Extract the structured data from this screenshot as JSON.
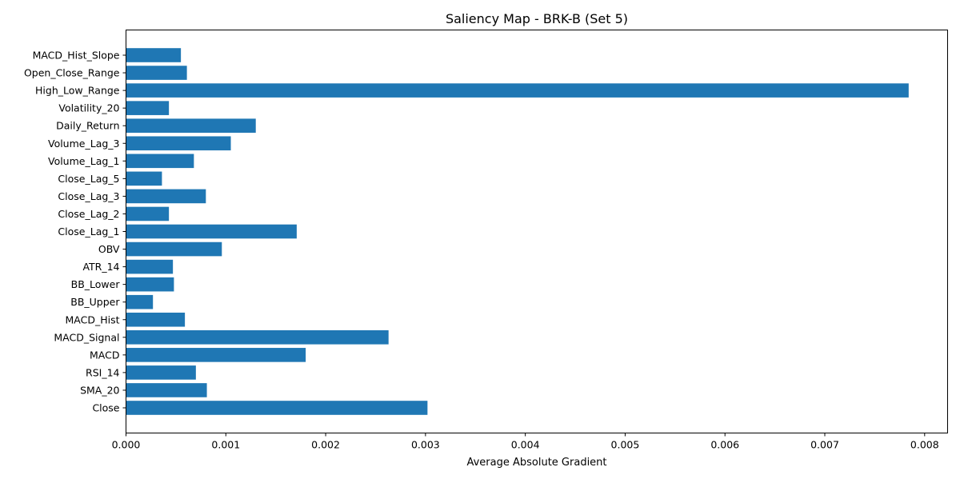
{
  "chart_data": {
    "type": "bar",
    "orientation": "horizontal",
    "title": "Saliency Map - BRK-B (Set 5)",
    "xlabel": "Average Absolute Gradient",
    "ylabel": "",
    "xlim": [
      0,
      0.00823
    ],
    "xticks": [
      0.0,
      0.001,
      0.002,
      0.003,
      0.004,
      0.005,
      0.006,
      0.007,
      0.008
    ],
    "xtick_labels": [
      "0.000",
      "0.001",
      "0.002",
      "0.003",
      "0.004",
      "0.005",
      "0.006",
      "0.007",
      "0.008"
    ],
    "grid": false,
    "bar_color": "#1f77b4",
    "categories": [
      "Close",
      "SMA_20",
      "RSI_14",
      "MACD",
      "MACD_Signal",
      "MACD_Hist",
      "BB_Upper",
      "BB_Lower",
      "ATR_14",
      "OBV",
      "Close_Lag_1",
      "Close_Lag_2",
      "Close_Lag_3",
      "Close_Lag_5",
      "Volume_Lag_1",
      "Volume_Lag_3",
      "Daily_Return",
      "Volatility_20",
      "High_Low_Range",
      "Open_Close_Range",
      "MACD_Hist_Slope"
    ],
    "values": [
      0.00302,
      0.00081,
      0.0007,
      0.0018,
      0.00263,
      0.00059,
      0.00027,
      0.00048,
      0.00047,
      0.00096,
      0.00171,
      0.00043,
      0.0008,
      0.00036,
      0.00068,
      0.00105,
      0.0013,
      0.00043,
      0.00784,
      0.00061,
      0.00055
    ]
  }
}
